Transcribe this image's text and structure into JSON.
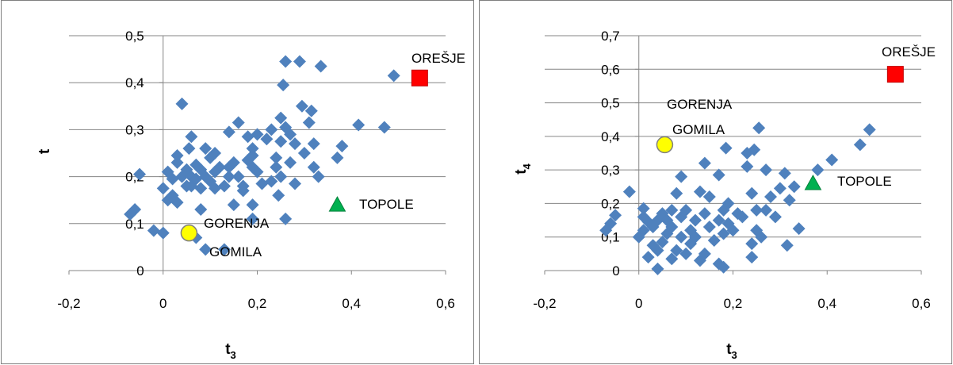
{
  "chart_data": [
    {
      "type": "scatter",
      "xlabel": "t",
      "xlabel_sub": "3",
      "ylabel": "t",
      "ylabel_sub": "",
      "xlim": [
        -0.2,
        0.6
      ],
      "ylim": [
        0,
        0.5
      ],
      "xticks": [
        "-0,2",
        "0",
        "0,2",
        "0,4",
        "0,6"
      ],
      "yticks": [
        "0",
        "0,1",
        "0,2",
        "0,3",
        "0,4",
        "0,5"
      ],
      "grid": "horizontal",
      "series": [
        {
          "marker": "diamond",
          "color": "#4f81bd",
          "points": [
            [
              -0.07,
              0.12
            ],
            [
              -0.06,
              0.13
            ],
            [
              -0.05,
              0.205
            ],
            [
              -0.02,
              0.085
            ],
            [
              0.0,
              0.08
            ],
            [
              0.0,
              0.175
            ],
            [
              0.01,
              0.21
            ],
            [
              0.01,
              0.15
            ],
            [
              0.02,
              0.16
            ],
            [
              0.02,
              0.195
            ],
            [
              0.03,
              0.23
            ],
            [
              0.03,
              0.145
            ],
            [
              0.03,
              0.245
            ],
            [
              0.04,
              0.355
            ],
            [
              0.04,
              0.2
            ],
            [
              0.05,
              0.18
            ],
            [
              0.05,
              0.215
            ],
            [
              0.055,
              0.26
            ],
            [
              0.06,
              0.285
            ],
            [
              0.06,
              0.18
            ],
            [
              0.06,
              0.2
            ],
            [
              0.07,
              0.225
            ],
            [
              0.07,
              0.195
            ],
            [
              0.07,
              0.07
            ],
            [
              0.08,
              0.175
            ],
            [
              0.08,
              0.215
            ],
            [
              0.08,
              0.13
            ],
            [
              0.09,
              0.045
            ],
            [
              0.09,
              0.26
            ],
            [
              0.09,
              0.2
            ],
            [
              0.1,
              0.19
            ],
            [
              0.1,
              0.24
            ],
            [
              0.11,
              0.25
            ],
            [
              0.11,
              0.175
            ],
            [
              0.11,
              0.21
            ],
            [
              0.12,
              0.22
            ],
            [
              0.13,
              0.045
            ],
            [
              0.13,
              0.18
            ],
            [
              0.14,
              0.2
            ],
            [
              0.14,
              0.295
            ],
            [
              0.14,
              0.22
            ],
            [
              0.15,
              0.23
            ],
            [
              0.15,
              0.14
            ],
            [
              0.16,
              0.315
            ],
            [
              0.16,
              0.2
            ],
            [
              0.17,
              0.18
            ],
            [
              0.17,
              0.17
            ],
            [
              0.18,
              0.285
            ],
            [
              0.18,
              0.235
            ],
            [
              0.19,
              0.26
            ],
            [
              0.19,
              0.245
            ],
            [
              0.19,
              0.11
            ],
            [
              0.19,
              0.14
            ],
            [
              0.19,
              0.22
            ],
            [
              0.2,
              0.29
            ],
            [
              0.2,
              0.21
            ],
            [
              0.21,
              0.185
            ],
            [
              0.22,
              0.28
            ],
            [
              0.23,
              0.19
            ],
            [
              0.23,
              0.3
            ],
            [
              0.24,
              0.22
            ],
            [
              0.24,
              0.24
            ],
            [
              0.245,
              0.16
            ],
            [
              0.25,
              0.325
            ],
            [
              0.25,
              0.275
            ],
            [
              0.25,
              0.2
            ],
            [
              0.255,
              0.395
            ],
            [
              0.26,
              0.445
            ],
            [
              0.26,
              0.305
            ],
            [
              0.26,
              0.11
            ],
            [
              0.27,
              0.23
            ],
            [
              0.27,
              0.29
            ],
            [
              0.28,
              0.185
            ],
            [
              0.28,
              0.27
            ],
            [
              0.29,
              0.445
            ],
            [
              0.295,
              0.35
            ],
            [
              0.3,
              0.25
            ],
            [
              0.31,
              0.315
            ],
            [
              0.315,
              0.34
            ],
            [
              0.32,
              0.27
            ],
            [
              0.32,
              0.22
            ],
            [
              0.33,
              0.2
            ],
            [
              0.335,
              0.435
            ],
            [
              0.37,
              0.24
            ],
            [
              0.38,
              0.265
            ],
            [
              0.415,
              0.31
            ],
            [
              0.47,
              0.305
            ],
            [
              0.49,
              0.415
            ]
          ]
        },
        {
          "name": "OREŠJE",
          "marker": "square",
          "color": "#ff0000",
          "points": [
            [
              0.545,
              0.41
            ]
          ]
        },
        {
          "name": "TOPOLE",
          "marker": "triangle",
          "color": "#00b050",
          "points": [
            [
              0.37,
              0.14
            ]
          ]
        },
        {
          "name": "GORENJA GOMILA",
          "marker": "circle",
          "color": "#ffff00",
          "points": [
            [
              0.055,
              0.08
            ]
          ]
        }
      ],
      "annotations": {
        "oresje": "OREŠJE",
        "topole": "TOPOLE",
        "gorenja": "GORENJA",
        "gomila": "GOMILA"
      }
    },
    {
      "type": "scatter",
      "xlabel": "t",
      "xlabel_sub": "3",
      "ylabel": "t",
      "ylabel_sub": "4",
      "xlim": [
        -0.2,
        0.6
      ],
      "ylim": [
        0,
        0.7
      ],
      "xticks": [
        "-0,2",
        "0",
        "0,2",
        "0,4",
        "0,6"
      ],
      "yticks": [
        "0",
        "0,1",
        "0,2",
        "0,3",
        "0,4",
        "0,5",
        "0,6",
        "0,7"
      ],
      "grid": "horizontal",
      "series": [
        {
          "marker": "diamond",
          "color": "#4f81bd",
          "points": [
            [
              -0.07,
              0.12
            ],
            [
              -0.06,
              0.14
            ],
            [
              -0.05,
              0.165
            ],
            [
              -0.02,
              0.235
            ],
            [
              0.0,
              0.1
            ],
            [
              0.01,
              0.16
            ],
            [
              0.01,
              0.185
            ],
            [
              0.01,
              0.12
            ],
            [
              0.02,
              0.04
            ],
            [
              0.02,
              0.145
            ],
            [
              0.03,
              0.075
            ],
            [
              0.03,
              0.13
            ],
            [
              0.04,
              0.06
            ],
            [
              0.04,
              0.15
            ],
            [
              0.04,
              0.005
            ],
            [
              0.05,
              0.17
            ],
            [
              0.05,
              0.085
            ],
            [
              0.06,
              0.11
            ],
            [
              0.06,
              0.15
            ],
            [
              0.07,
              0.035
            ],
            [
              0.07,
              0.18
            ],
            [
              0.07,
              0.13
            ],
            [
              0.08,
              0.23
            ],
            [
              0.08,
              0.06
            ],
            [
              0.09,
              0.28
            ],
            [
              0.09,
              0.1
            ],
            [
              0.09,
              0.16
            ],
            [
              0.1,
              0.18
            ],
            [
              0.1,
              0.05
            ],
            [
              0.11,
              0.12
            ],
            [
              0.11,
              0.08
            ],
            [
              0.12,
              0.15
            ],
            [
              0.12,
              0.1
            ],
            [
              0.13,
              0.235
            ],
            [
              0.13,
              0.03
            ],
            [
              0.14,
              0.32
            ],
            [
              0.14,
              0.05
            ],
            [
              0.14,
              0.17
            ],
            [
              0.15,
              0.22
            ],
            [
              0.15,
              0.13
            ],
            [
              0.16,
              0.09
            ],
            [
              0.17,
              0.285
            ],
            [
              0.17,
              0.02
            ],
            [
              0.17,
              0.15
            ],
            [
              0.18,
              0.01
            ],
            [
              0.18,
              0.18
            ],
            [
              0.18,
              0.11
            ],
            [
              0.185,
              0.365
            ],
            [
              0.19,
              0.2
            ],
            [
              0.19,
              0.14
            ],
            [
              0.2,
              0.12
            ],
            [
              0.21,
              0.17
            ],
            [
              0.22,
              0.16
            ],
            [
              0.23,
              0.35
            ],
            [
              0.23,
              0.31
            ],
            [
              0.24,
              0.08
            ],
            [
              0.24,
              0.04
            ],
            [
              0.24,
              0.23
            ],
            [
              0.245,
              0.36
            ],
            [
              0.25,
              0.18
            ],
            [
              0.25,
              0.12
            ],
            [
              0.255,
              0.425
            ],
            [
              0.26,
              0.1
            ],
            [
              0.27,
              0.3
            ],
            [
              0.27,
              0.18
            ],
            [
              0.28,
              0.22
            ],
            [
              0.29,
              0.16
            ],
            [
              0.3,
              0.245
            ],
            [
              0.31,
              0.29
            ],
            [
              0.315,
              0.075
            ],
            [
              0.32,
              0.21
            ],
            [
              0.33,
              0.25
            ],
            [
              0.34,
              0.125
            ],
            [
              0.38,
              0.3
            ],
            [
              0.41,
              0.33
            ],
            [
              0.47,
              0.375
            ],
            [
              0.49,
              0.42
            ]
          ]
        },
        {
          "name": "OREŠJE",
          "marker": "square",
          "color": "#ff0000",
          "points": [
            [
              0.545,
              0.585
            ]
          ]
        },
        {
          "name": "TOPOLE",
          "marker": "triangle",
          "color": "#00b050",
          "points": [
            [
              0.37,
              0.26
            ]
          ]
        },
        {
          "name": "GORENJA GOMILA",
          "marker": "circle",
          "color": "#ffff00",
          "points": [
            [
              0.055,
              0.375
            ]
          ]
        }
      ],
      "annotations": {
        "oresje": "OREŠJE",
        "topole": "TOPOLE",
        "gorenja": "GORENJA",
        "gomila": "GOMILA"
      }
    }
  ]
}
